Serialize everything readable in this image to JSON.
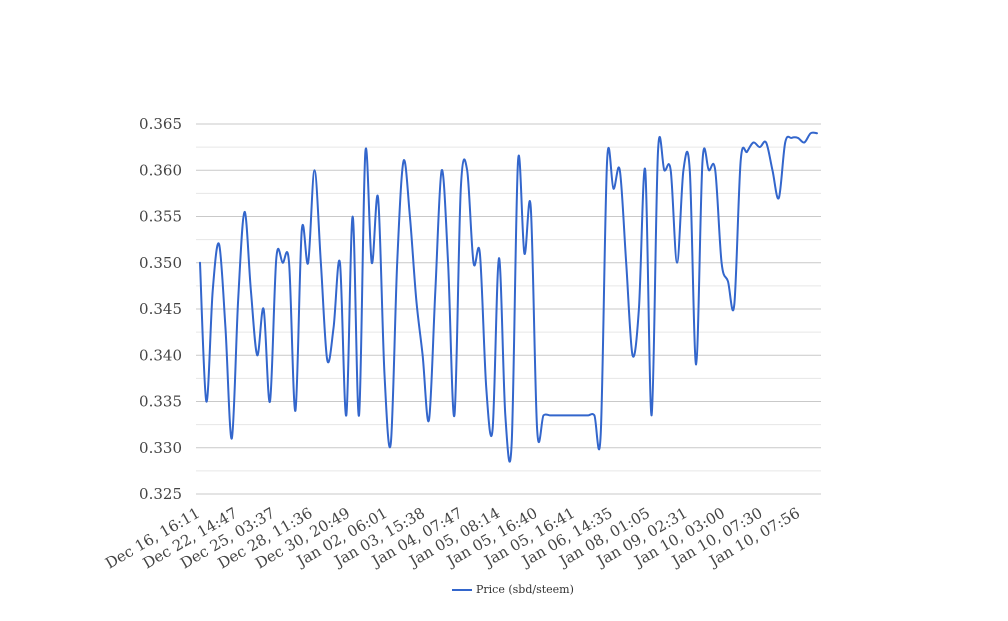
{
  "chart_data": {
    "type": "line",
    "title": "",
    "xlabel": "",
    "ylabel": "",
    "ylim": [
      0.325,
      0.365
    ],
    "y_ticks": [
      "0.325",
      "0.330",
      "0.335",
      "0.340",
      "0.345",
      "0.350",
      "0.355",
      "0.360",
      "0.365"
    ],
    "x_tick_labels": [
      "Dec 16, 16:11",
      "Dec 22, 14:47",
      "Dec 25, 03:37",
      "Dec 28, 11:36",
      "Dec 30, 20:49",
      "Jan 02, 06:01",
      "Jan 03, 15:38",
      "Jan 04, 07:47",
      "Jan 05, 08:14",
      "Jan 05, 16:40",
      "Jan 05, 16:41",
      "Jan 06, 14:35",
      "Jan 08, 01:05",
      "Jan 09, 02:31",
      "Jan 10, 03:00",
      "Jan 10, 07:30",
      "Jan 10, 07:56"
    ],
    "grid": true,
    "legend_position": "bottom",
    "series": [
      {
        "name": "Price (sbd/steem)",
        "color": "#3366cc",
        "values": [
          0.35,
          0.335,
          0.347,
          0.352,
          0.343,
          0.331,
          0.346,
          0.3555,
          0.347,
          0.34,
          0.345,
          0.335,
          0.3505,
          0.35,
          0.35,
          0.334,
          0.3535,
          0.35,
          0.36,
          0.35,
          0.3395,
          0.343,
          0.35,
          0.3335,
          0.355,
          0.3335,
          0.362,
          0.35,
          0.357,
          0.338,
          0.3305,
          0.35,
          0.361,
          0.355,
          0.346,
          0.34,
          0.333,
          0.347,
          0.36,
          0.35,
          0.3335,
          0.358,
          0.36,
          0.35,
          0.351,
          0.3365,
          0.332,
          0.3505,
          0.3335,
          0.3305,
          0.361,
          0.351,
          0.356,
          0.332,
          0.3335,
          0.3335,
          0.3335,
          0.3335,
          0.3335,
          0.3335,
          0.3335,
          0.3335,
          0.3335,
          0.3315,
          0.361,
          0.358,
          0.36,
          0.35,
          0.34,
          0.345,
          0.36,
          0.3335,
          0.362,
          0.36,
          0.36,
          0.35,
          0.36,
          0.36,
          0.339,
          0.361,
          0.36,
          0.36,
          0.35,
          0.348,
          0.3455,
          0.361,
          0.362,
          0.363,
          0.3625,
          0.363,
          0.36,
          0.357,
          0.363,
          0.3635,
          0.3635,
          0.363,
          0.364,
          0.364
        ]
      }
    ]
  }
}
